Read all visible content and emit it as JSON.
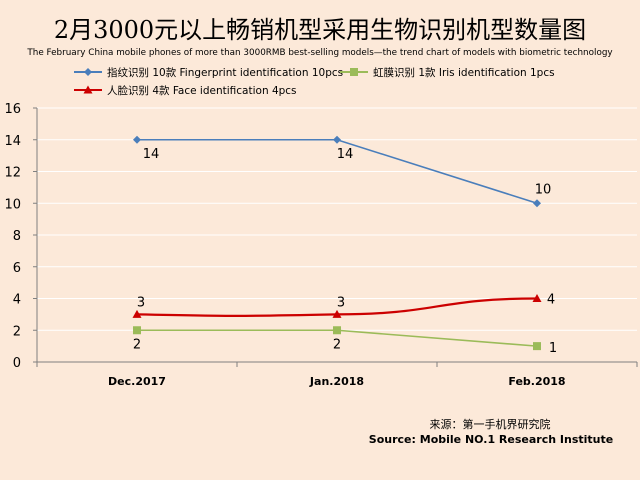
{
  "chart_data": {
    "type": "line",
    "title": "2月3000元以上畅销机型采用生物识别机型数量图",
    "subtitle": "The February China mobile phones of more than 3000RMB best-selling models—the trend chart of models with biometric technology",
    "categories": [
      "Dec.2017",
      "Jan.2018",
      "Feb.2018"
    ],
    "ylim": [
      0,
      16
    ],
    "yticks": [
      0,
      2,
      4,
      6,
      8,
      10,
      12,
      14,
      16
    ],
    "grid": true,
    "series": [
      {
        "name": "指纹识别 10款 Fingerprint identification 10pcs",
        "values": [
          14,
          14,
          10
        ],
        "color": "#4a7ebb",
        "marker": "diamond",
        "smooth": false
      },
      {
        "name": "虹膜识别 1款 Iris identification 1pcs",
        "values": [
          2,
          2,
          1
        ],
        "color": "#9bbb59",
        "marker": "square",
        "smooth": false
      },
      {
        "name": "人脸识别 4款 Face identification 4pcs",
        "values": [
          3,
          3,
          4
        ],
        "color": "#cc0000",
        "marker": "triangle",
        "smooth": true
      }
    ],
    "source_cn": "来源：第一手机界研究院",
    "source_en": "Source: Mobile NO.1 Research Institute"
  }
}
